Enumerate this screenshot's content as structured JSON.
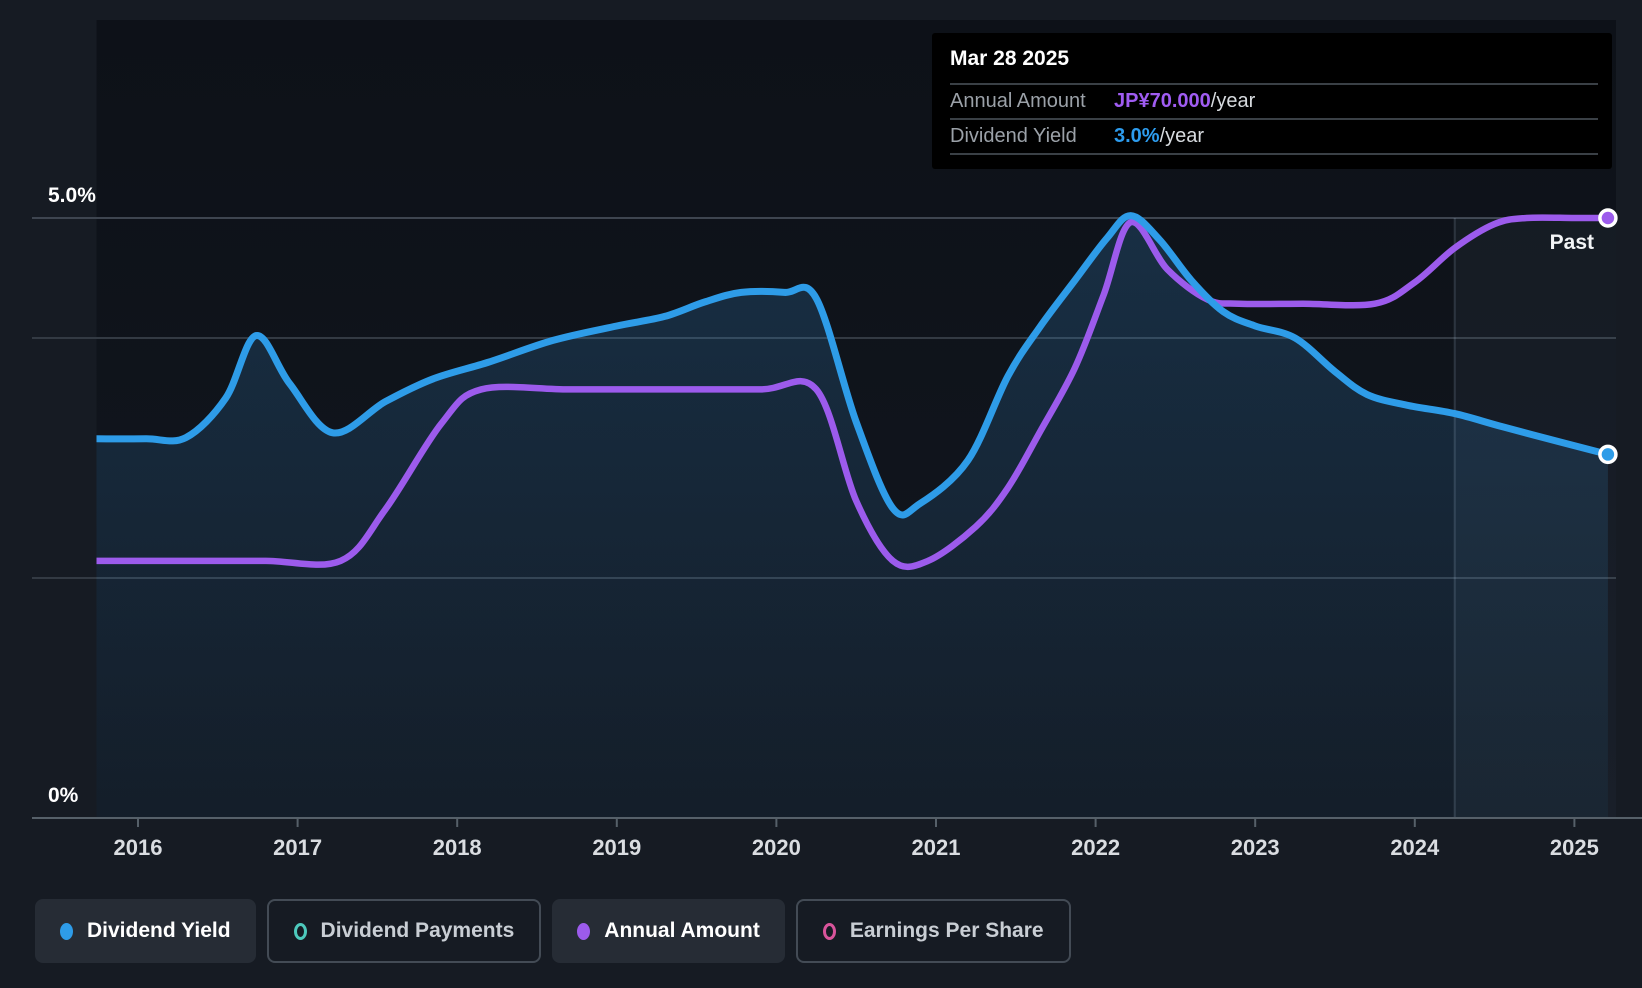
{
  "tooltip": {
    "date": "Mar 28 2025",
    "rows": [
      {
        "label": "Annual Amount",
        "value": "JP¥70.000",
        "suffix": "/year",
        "value_color": "#A05CF2"
      },
      {
        "label": "Dividend Yield",
        "value": "3.0%",
        "suffix": "/year",
        "value_color": "#2D9CEE"
      }
    ]
  },
  "past_label": "Past",
  "legend": {
    "items": [
      {
        "label": "Dividend Yield",
        "color": "#2E9CE8",
        "marker": "filled",
        "active": true
      },
      {
        "label": "Dividend Payments",
        "color": "#4DC9BC",
        "marker": "outline",
        "active": false
      },
      {
        "label": "Annual Amount",
        "color": "#9C5BEC",
        "marker": "filled",
        "active": true
      },
      {
        "label": "Earnings Per Share",
        "color": "#D9549B",
        "marker": "outline",
        "active": false
      }
    ]
  },
  "chart_data": {
    "type": "line",
    "x_domain": [
      2015.74,
      2025.24
    ],
    "x_ticks": [
      2016,
      2017,
      2018,
      2019,
      2020,
      2021,
      2022,
      2023,
      2024,
      2025
    ],
    "y_axis": {
      "unit": "%",
      "min": 0,
      "max": 5,
      "labels": [
        {
          "value": 5.0,
          "text": "5.0%"
        },
        {
          "value": 0,
          "text": "0%"
        }
      ],
      "gridline_values": [
        5.0,
        4.0,
        2.0,
        0
      ]
    },
    "amount_axis": {
      "unit": "JP¥",
      "value_at_top_gridline": 70
    },
    "past_divider_year": 2024.25,
    "legend_position": "bottom",
    "grid": true,
    "series": [
      {
        "name": "Dividend Yield",
        "unit": "%",
        "color": "#2E9CE8",
        "points": [
          [
            2015.74,
            3.16
          ],
          [
            2016.05,
            3.16
          ],
          [
            2016.3,
            3.17
          ],
          [
            2016.55,
            3.5
          ],
          [
            2016.74,
            4.02
          ],
          [
            2016.95,
            3.62
          ],
          [
            2017.22,
            3.21
          ],
          [
            2017.55,
            3.47
          ],
          [
            2017.85,
            3.66
          ],
          [
            2018.2,
            3.8
          ],
          [
            2018.6,
            3.98
          ],
          [
            2019.0,
            4.1
          ],
          [
            2019.3,
            4.18
          ],
          [
            2019.55,
            4.3
          ],
          [
            2019.78,
            4.38
          ],
          [
            2020.05,
            4.38
          ],
          [
            2020.25,
            4.33
          ],
          [
            2020.5,
            3.3
          ],
          [
            2020.73,
            2.58
          ],
          [
            2020.9,
            2.62
          ],
          [
            2021.2,
            2.98
          ],
          [
            2021.45,
            3.68
          ],
          [
            2021.65,
            4.09
          ],
          [
            2021.87,
            4.48
          ],
          [
            2022.07,
            4.83
          ],
          [
            2022.22,
            5.02
          ],
          [
            2022.4,
            4.82
          ],
          [
            2022.6,
            4.48
          ],
          [
            2022.8,
            4.22
          ],
          [
            2023.0,
            4.1
          ],
          [
            2023.25,
            4.0
          ],
          [
            2023.5,
            3.72
          ],
          [
            2023.7,
            3.53
          ],
          [
            2023.95,
            3.44
          ],
          [
            2024.25,
            3.37
          ],
          [
            2024.55,
            3.26
          ],
          [
            2024.95,
            3.12
          ],
          [
            2025.21,
            3.03
          ]
        ]
      },
      {
        "name": "Annual Amount",
        "unit": "JP¥",
        "color": "#9C5BEC",
        "points": [
          [
            2015.74,
            30
          ],
          [
            2016.3,
            30
          ],
          [
            2016.8,
            30
          ],
          [
            2017.27,
            30
          ],
          [
            2017.55,
            36
          ],
          [
            2017.9,
            46
          ],
          [
            2018.15,
            50
          ],
          [
            2018.7,
            50
          ],
          [
            2019.3,
            50
          ],
          [
            2019.9,
            50
          ],
          [
            2020.25,
            50
          ],
          [
            2020.5,
            37
          ],
          [
            2020.73,
            30
          ],
          [
            2020.95,
            30
          ],
          [
            2021.25,
            34
          ],
          [
            2021.45,
            38.5
          ],
          [
            2021.65,
            45
          ],
          [
            2021.87,
            52.5
          ],
          [
            2022.05,
            61
          ],
          [
            2022.22,
            69.5
          ],
          [
            2022.45,
            64
          ],
          [
            2022.7,
            60.5
          ],
          [
            2022.9,
            60
          ],
          [
            2023.3,
            60
          ],
          [
            2023.75,
            60
          ],
          [
            2024.0,
            62.5
          ],
          [
            2024.25,
            66.5
          ],
          [
            2024.5,
            69.3
          ],
          [
            2024.7,
            70
          ],
          [
            2025.0,
            70
          ],
          [
            2025.21,
            70
          ]
        ]
      }
    ]
  }
}
